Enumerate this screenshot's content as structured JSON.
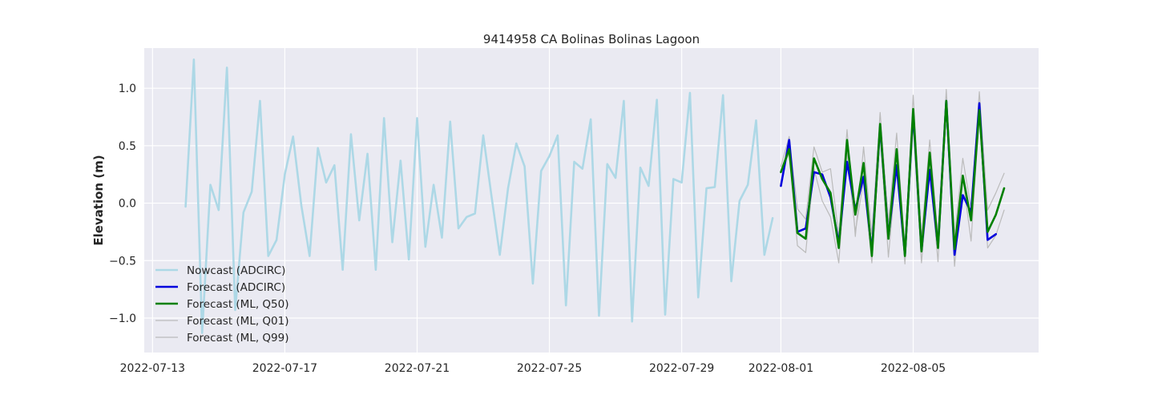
{
  "chart_data": {
    "type": "line",
    "title": "9414958 CA Bolinas Bolinas Lagoon",
    "xlabel": "",
    "ylabel": "Elevation (m)",
    "xlim": [
      "2022-07-12T18:00",
      "2022-08-08T19:00"
    ],
    "ylim": [
      -1.3,
      1.35
    ],
    "x_ticks": [
      "2022-07-13",
      "2022-07-17",
      "2022-07-21",
      "2022-07-25",
      "2022-07-29",
      "2022-08-01",
      "2022-08-05"
    ],
    "y_ticks": [
      1.0,
      0.5,
      0.0,
      -0.5,
      -1.0
    ],
    "y_tick_labels": [
      "1.0",
      "0.5",
      "0.0",
      "−0.5",
      "−1.0"
    ],
    "grid": true,
    "legend_position": "lower-left",
    "background": "#eaeaf2",
    "series": [
      {
        "name": "Nowcast (ADCIRC)",
        "color": "#add8e6",
        "x": [
          "2022-07-14T00:00",
          "2022-07-14T06:00",
          "2022-07-14T12:00",
          "2022-07-14T18:00",
          "2022-07-15T00:00",
          "2022-07-15T06:00",
          "2022-07-15T12:00",
          "2022-07-15T18:00",
          "2022-07-16T00:00",
          "2022-07-16T06:00",
          "2022-07-16T12:00",
          "2022-07-16T18:00",
          "2022-07-17T00:00",
          "2022-07-17T06:00",
          "2022-07-17T12:00",
          "2022-07-17T18:00",
          "2022-07-18T00:00",
          "2022-07-18T06:00",
          "2022-07-18T12:00",
          "2022-07-18T18:00",
          "2022-07-19T00:00",
          "2022-07-19T06:00",
          "2022-07-19T12:00",
          "2022-07-19T18:00",
          "2022-07-20T00:00",
          "2022-07-20T06:00",
          "2022-07-20T12:00",
          "2022-07-20T18:00",
          "2022-07-21T00:00",
          "2022-07-21T06:00",
          "2022-07-21T12:00",
          "2022-07-21T18:00",
          "2022-07-22T00:00",
          "2022-07-22T06:00",
          "2022-07-22T12:00",
          "2022-07-22T18:00",
          "2022-07-23T00:00",
          "2022-07-23T06:00",
          "2022-07-23T12:00",
          "2022-07-23T18:00",
          "2022-07-24T00:00",
          "2022-07-24T06:00",
          "2022-07-24T12:00",
          "2022-07-24T18:00",
          "2022-07-25T00:00",
          "2022-07-25T06:00",
          "2022-07-25T12:00",
          "2022-07-25T18:00",
          "2022-07-26T00:00",
          "2022-07-26T06:00",
          "2022-07-26T12:00",
          "2022-07-26T18:00",
          "2022-07-27T00:00",
          "2022-07-27T06:00",
          "2022-07-27T12:00",
          "2022-07-27T18:00",
          "2022-07-28T00:00",
          "2022-07-28T06:00",
          "2022-07-28T12:00",
          "2022-07-28T18:00",
          "2022-07-29T00:00",
          "2022-07-29T06:00",
          "2022-07-29T12:00",
          "2022-07-29T18:00",
          "2022-07-30T00:00",
          "2022-07-30T06:00",
          "2022-07-30T12:00",
          "2022-07-30T18:00",
          "2022-07-31T00:00",
          "2022-07-31T06:00",
          "2022-07-31T12:00",
          "2022-07-31T18:00"
        ],
        "values": [
          -0.03,
          1.25,
          -1.13,
          0.16,
          -0.06,
          1.18,
          -0.93,
          -0.08,
          0.1,
          0.89,
          -0.46,
          -0.32,
          0.25,
          0.58,
          -0.02,
          -0.46,
          0.48,
          0.18,
          0.33,
          -0.58,
          0.6,
          -0.15,
          0.43,
          -0.58,
          0.74,
          -0.34,
          0.37,
          -0.49,
          0.74,
          -0.38,
          0.16,
          -0.3,
          0.71,
          -0.22,
          -0.12,
          -0.09,
          0.59,
          0.06,
          -0.45,
          0.13,
          0.52,
          0.32,
          -0.7,
          0.28,
          0.41,
          0.59,
          -0.89,
          0.36,
          0.3,
          0.73,
          -0.98,
          0.34,
          0.22,
          0.89,
          -1.03,
          0.31,
          0.15,
          0.9,
          -0.97,
          0.21,
          0.18,
          0.96,
          -0.82,
          0.13,
          0.14,
          0.94,
          -0.68,
          0.02,
          0.16,
          0.72,
          -0.45,
          -0.13
        ]
      },
      {
        "name": "Forecast (ADCIRC)",
        "color": "#0000dd",
        "x": [
          "2022-08-01T00:00",
          "2022-08-01T06:00",
          "2022-08-01T12:00",
          "2022-08-01T18:00",
          "2022-08-02T00:00",
          "2022-08-02T06:00",
          "2022-08-02T12:00",
          "2022-08-02T18:00",
          "2022-08-03T00:00",
          "2022-08-03T06:00",
          "2022-08-03T12:00",
          "2022-08-03T18:00",
          "2022-08-04T00:00",
          "2022-08-04T06:00",
          "2022-08-04T12:00",
          "2022-08-04T18:00",
          "2022-08-05T00:00",
          "2022-08-05T06:00",
          "2022-08-05T12:00",
          "2022-08-05T18:00",
          "2022-08-06T00:00",
          "2022-08-06T06:00",
          "2022-08-06T12:00",
          "2022-08-06T18:00",
          "2022-08-07T00:00",
          "2022-08-07T06:00",
          "2022-08-07T12:00"
        ],
        "values": [
          0.15,
          0.55,
          -0.25,
          -0.22,
          0.27,
          0.25,
          0.05,
          -0.35,
          0.36,
          -0.06,
          0.23,
          -0.42,
          0.67,
          -0.29,
          0.33,
          -0.45,
          0.79,
          -0.41,
          0.29,
          -0.38,
          0.89,
          -0.45,
          0.07,
          -0.08,
          0.87,
          -0.32,
          -0.27
        ]
      },
      {
        "name": "Forecast (ML, Q50)",
        "color": "#008000",
        "x": [
          "2022-08-01T00:00",
          "2022-08-01T06:00",
          "2022-08-01T12:00",
          "2022-08-01T18:00",
          "2022-08-02T00:00",
          "2022-08-02T06:00",
          "2022-08-02T12:00",
          "2022-08-02T18:00",
          "2022-08-03T00:00",
          "2022-08-03T06:00",
          "2022-08-03T12:00",
          "2022-08-03T18:00",
          "2022-08-04T00:00",
          "2022-08-04T06:00",
          "2022-08-04T12:00",
          "2022-08-04T18:00",
          "2022-08-05T00:00",
          "2022-08-05T06:00",
          "2022-08-05T12:00",
          "2022-08-05T18:00",
          "2022-08-06T00:00",
          "2022-08-06T06:00",
          "2022-08-06T12:00",
          "2022-08-06T18:00",
          "2022-08-07T00:00",
          "2022-08-07T06:00",
          "2022-08-07T12:00",
          "2022-08-07T18:00"
        ],
        "values": [
          0.27,
          0.47,
          -0.26,
          -0.31,
          0.39,
          0.21,
          0.09,
          -0.39,
          0.55,
          -0.1,
          0.35,
          -0.46,
          0.69,
          -0.31,
          0.47,
          -0.46,
          0.82,
          -0.42,
          0.44,
          -0.39,
          0.89,
          -0.4,
          0.24,
          -0.15,
          0.81,
          -0.25,
          -0.1,
          0.13
        ]
      },
      {
        "name": "Forecast (ML, Q01)",
        "color": "#bbbbbb",
        "x": [
          "2022-08-01T00:00",
          "2022-08-01T06:00",
          "2022-08-01T12:00",
          "2022-08-01T18:00",
          "2022-08-02T00:00",
          "2022-08-02T06:00",
          "2022-08-02T12:00",
          "2022-08-02T18:00",
          "2022-08-03T00:00",
          "2022-08-03T06:00",
          "2022-08-03T12:00",
          "2022-08-03T18:00",
          "2022-08-04T00:00",
          "2022-08-04T06:00",
          "2022-08-04T12:00",
          "2022-08-04T18:00",
          "2022-08-05T00:00",
          "2022-08-05T06:00",
          "2022-08-05T12:00",
          "2022-08-05T18:00",
          "2022-08-06T00:00",
          "2022-08-06T06:00",
          "2022-08-06T12:00",
          "2022-08-06T18:00",
          "2022-08-07T00:00",
          "2022-08-07T06:00",
          "2022-08-07T12:00",
          "2022-08-07T18:00"
        ],
        "values": [
          0.28,
          0.43,
          -0.37,
          -0.43,
          0.3,
          0.02,
          -0.12,
          -0.52,
          0.45,
          -0.25,
          0.2,
          -0.52,
          0.6,
          -0.47,
          0.34,
          -0.53,
          0.68,
          -0.52,
          0.3,
          -0.51,
          0.82,
          -0.55,
          0.22,
          -0.33,
          0.78,
          -0.39,
          -0.28,
          -0.06
        ]
      },
      {
        "name": "Forecast (ML, Q99)",
        "color": "#bbbbbb",
        "x": [
          "2022-08-01T00:00",
          "2022-08-01T06:00",
          "2022-08-01T12:00",
          "2022-08-01T18:00",
          "2022-08-02T00:00",
          "2022-08-02T06:00",
          "2022-08-02T12:00",
          "2022-08-02T18:00",
          "2022-08-03T00:00",
          "2022-08-03T06:00",
          "2022-08-03T12:00",
          "2022-08-03T18:00",
          "2022-08-04T00:00",
          "2022-08-04T06:00",
          "2022-08-04T12:00",
          "2022-08-04T18:00",
          "2022-08-05T00:00",
          "2022-08-05T06:00",
          "2022-08-05T12:00",
          "2022-08-05T18:00",
          "2022-08-06T00:00",
          "2022-08-06T06:00",
          "2022-08-06T12:00",
          "2022-08-06T18:00",
          "2022-08-07T00:00",
          "2022-08-07T06:00",
          "2022-08-07T12:00",
          "2022-08-07T18:00"
        ],
        "values": [
          0.32,
          0.58,
          -0.05,
          -0.14,
          0.49,
          0.27,
          0.3,
          -0.28,
          0.64,
          -0.29,
          0.49,
          -0.27,
          0.79,
          -0.16,
          0.61,
          -0.39,
          0.94,
          -0.3,
          0.55,
          -0.28,
          0.99,
          -0.29,
          0.39,
          -0.05,
          0.97,
          -0.06,
          0.09,
          0.26
        ]
      }
    ]
  }
}
